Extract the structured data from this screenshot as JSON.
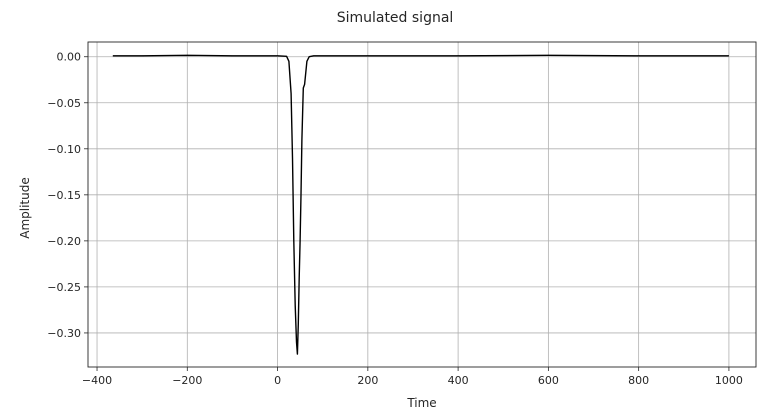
{
  "chart_data": {
    "type": "line",
    "title": "Simulated signal",
    "xlabel": "Time",
    "ylabel": "Amplitude",
    "xlim": [
      -420,
      1060
    ],
    "ylim": [
      -0.337,
      0.016
    ],
    "x_ticks": [
      -400,
      -200,
      0,
      200,
      400,
      600,
      800,
      1000
    ],
    "x_tick_labels": [
      "−400",
      "−200",
      "0",
      "200",
      "400",
      "600",
      "800",
      "1000"
    ],
    "y_ticks": [
      0.0,
      -0.05,
      -0.1,
      -0.15,
      -0.2,
      -0.25,
      -0.3
    ],
    "y_tick_labels": [
      "0.00",
      "−0.05",
      "−0.10",
      "−0.15",
      "−0.20",
      "−0.25",
      "−0.30"
    ],
    "grid": true,
    "line_color": "#000000",
    "series": [
      {
        "x": [
          -365,
          -300,
          -200,
          -100,
          0,
          20,
          25,
          30,
          33,
          36,
          39,
          42,
          44,
          46,
          48,
          50,
          52,
          54,
          57,
          60,
          65,
          70,
          80,
          100,
          200,
          400,
          600,
          800,
          1000
        ],
        "y": [
          0.001,
          0.001,
          0.0015,
          0.001,
          0.001,
          0.0005,
          -0.005,
          -0.04,
          -0.11,
          -0.2,
          -0.27,
          -0.31,
          -0.323,
          -0.29,
          -0.24,
          -0.2,
          -0.15,
          -0.09,
          -0.034,
          -0.03,
          -0.005,
          0.0,
          0.001,
          0.001,
          0.001,
          0.001,
          0.0015,
          0.001,
          0.001
        ]
      }
    ]
  }
}
